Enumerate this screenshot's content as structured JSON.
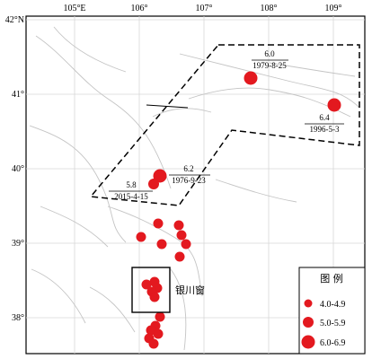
{
  "map": {
    "lon_ticks": [
      "105°E",
      "106°",
      "107°",
      "108°",
      "109°"
    ],
    "lat_ticks": [
      "42°N",
      "41°",
      "40°",
      "39°",
      "38°"
    ]
  },
  "events": [
    {
      "magnitude": "6.0",
      "date": "1979-8-25"
    },
    {
      "magnitude": "6.4",
      "date": "1996-5-3"
    },
    {
      "magnitude": "6.2",
      "date": "1976-9-23"
    },
    {
      "magnitude": "5.8",
      "date": "2015-4-15"
    }
  ],
  "region_label": "银川窗",
  "legend": {
    "title": "图  例",
    "items": [
      {
        "label": "4.0-4.9"
      },
      {
        "label": "5.0-5.9"
      },
      {
        "label": "6.0-6.9"
      }
    ]
  },
  "colors": {
    "epicenter": "#e3191f",
    "zone_outline": "#000000",
    "gridline": "#d7d7d7"
  }
}
